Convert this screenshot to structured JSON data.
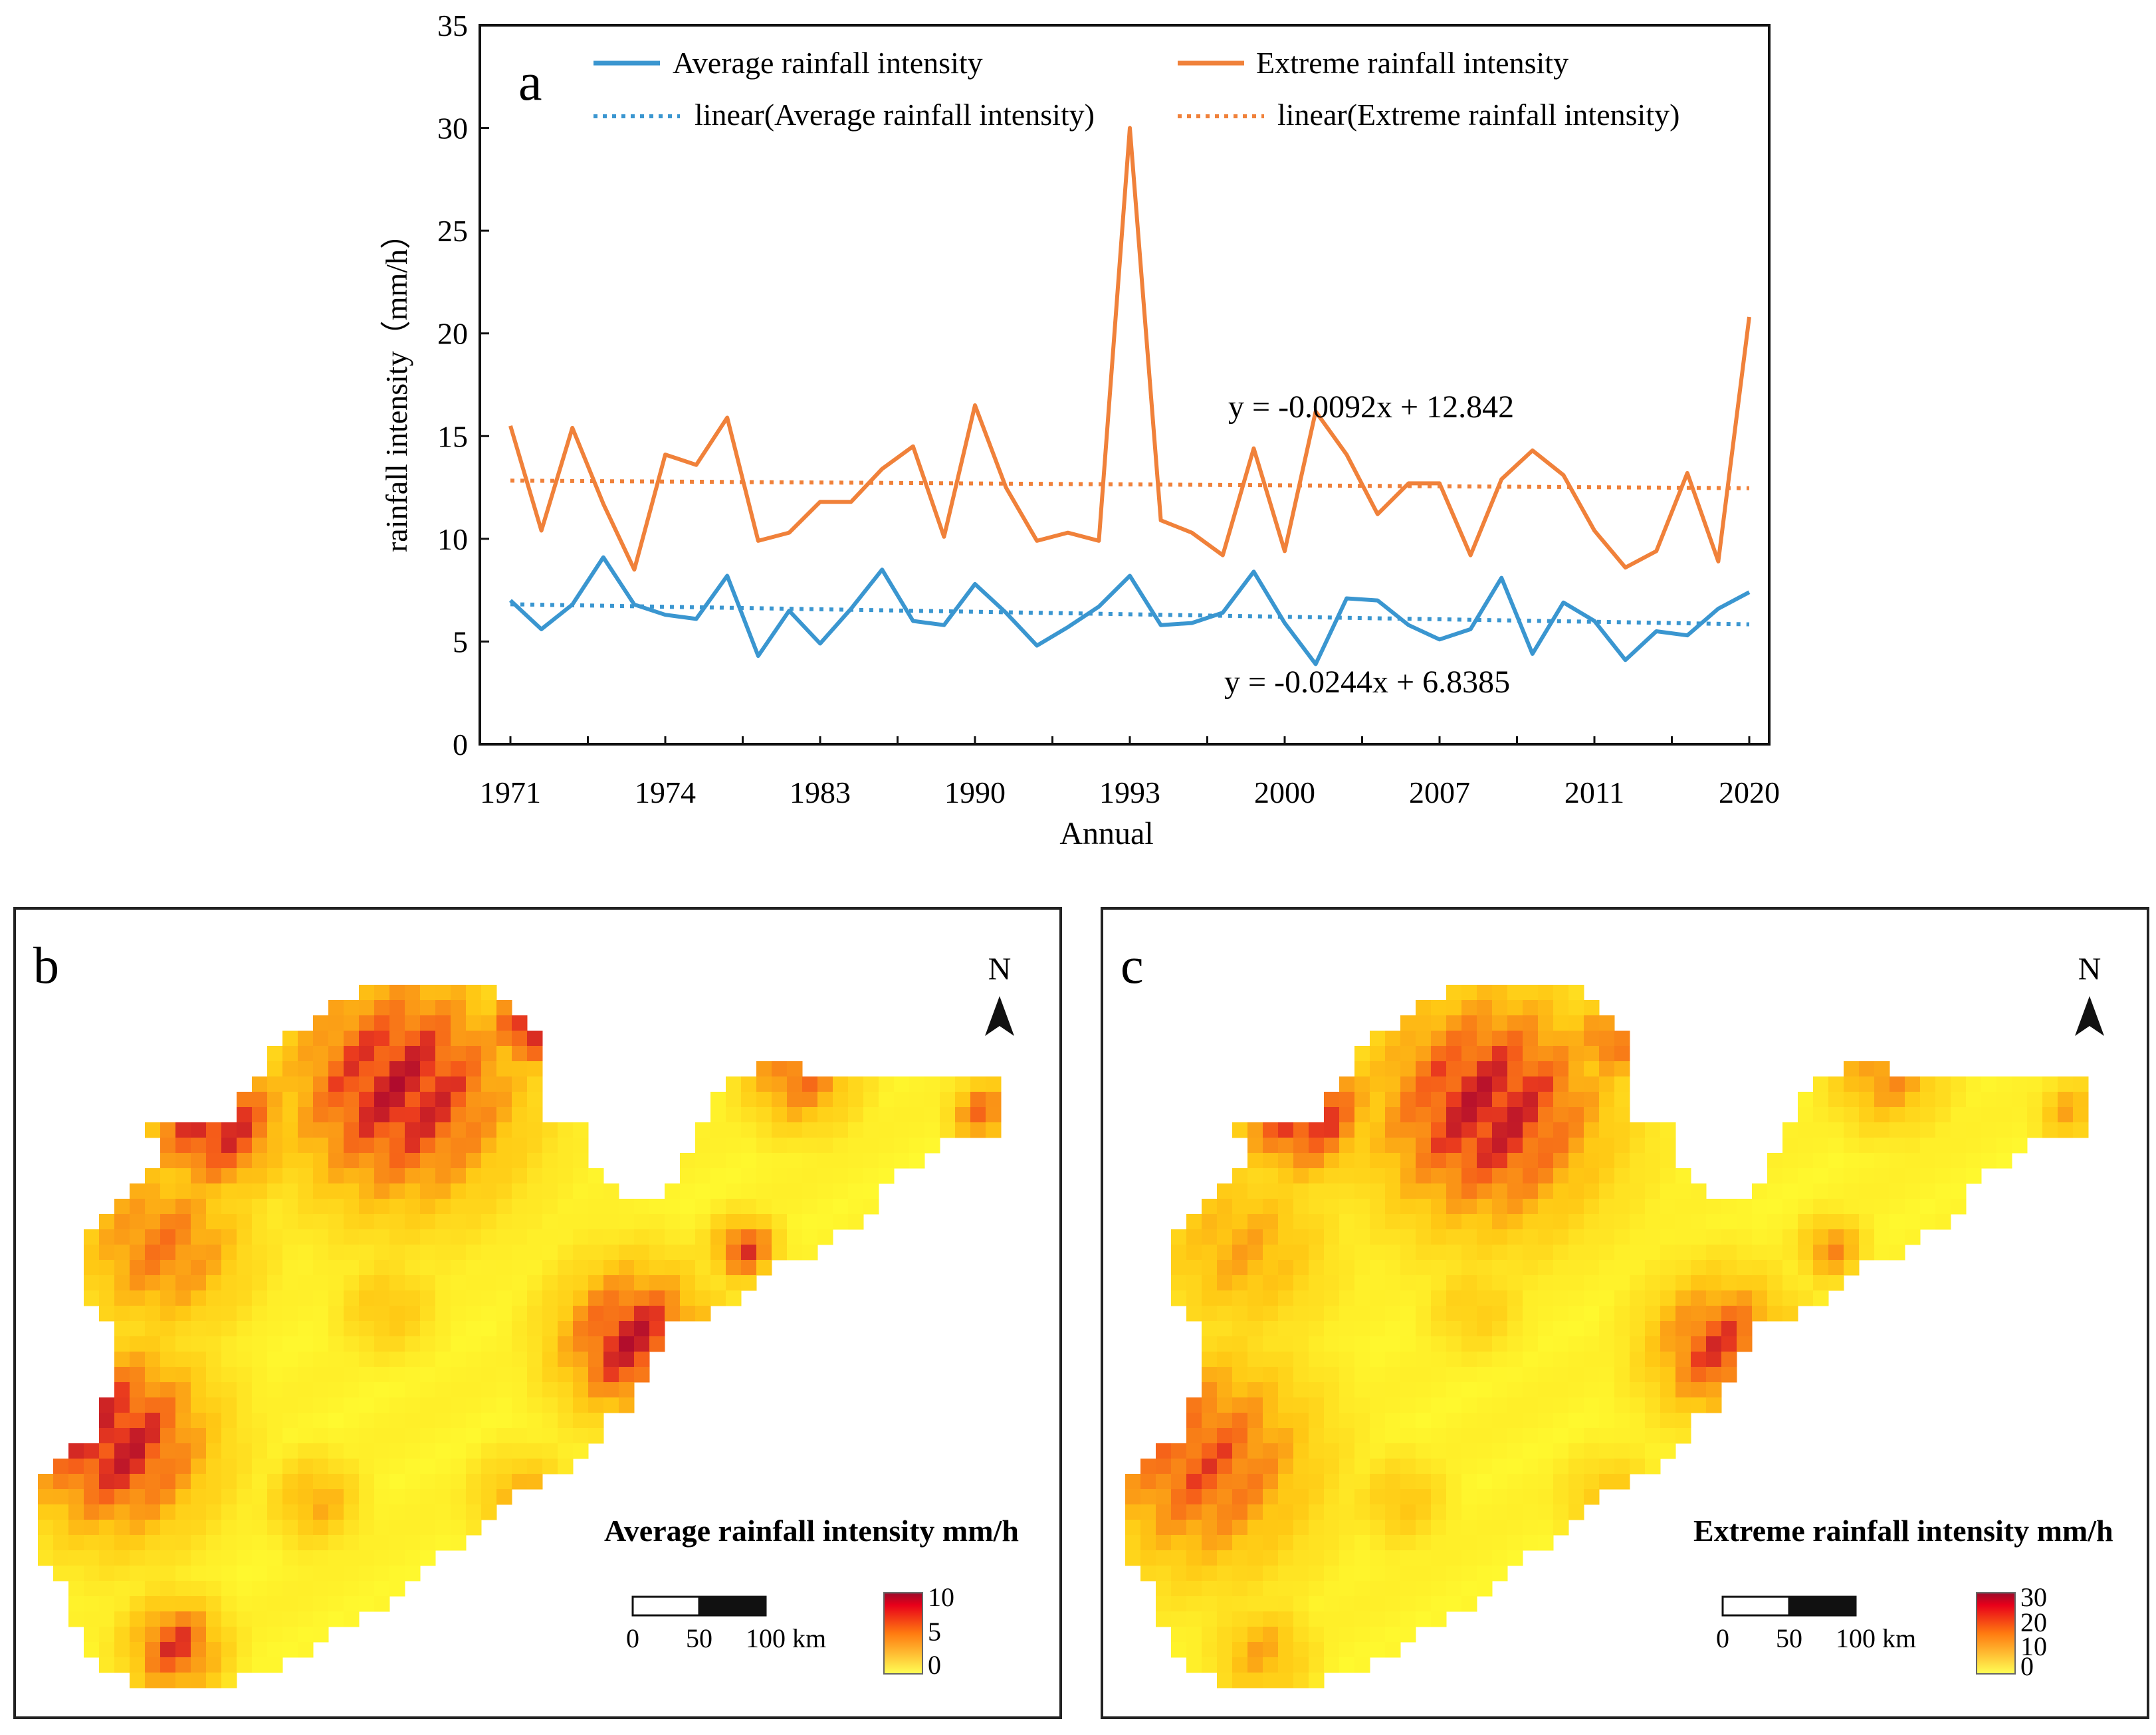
{
  "chart_data": [
    {
      "type": "line",
      "panel_letter": "a",
      "xlabel": "Annual",
      "ylabel": "rainfall intensity（mm/h）",
      "ylim": [
        0,
        35
      ],
      "yticks": [
        0,
        5,
        10,
        15,
        20,
        25,
        30,
        35
      ],
      "xlim": [
        1,
        50
      ],
      "xtick_labels": [
        "1971",
        "1974",
        "1983",
        "1990",
        "1993",
        "2000",
        "2007",
        "2011",
        "2020"
      ],
      "legend": "top",
      "grid": false,
      "series": [
        {
          "name": "Average rainfall intensity",
          "color": "#3a96d0",
          "style": "solid",
          "values": [
            7.0,
            5.6,
            6.8,
            9.1,
            6.8,
            6.3,
            6.1,
            8.2,
            4.3,
            6.5,
            4.9,
            6.6,
            8.5,
            6.0,
            5.8,
            7.8,
            6.4,
            4.8,
            5.7,
            6.7,
            8.2,
            5.8,
            5.9,
            6.4,
            8.4,
            5.9,
            3.9,
            7.1,
            7.0,
            5.8,
            5.1,
            5.6,
            8.1,
            4.4,
            6.9,
            6.0,
            4.1,
            5.5,
            5.3,
            6.6,
            7.4
          ]
        },
        {
          "name": "Extreme rainfall intensity",
          "color": "#f0813a",
          "style": "solid",
          "values": [
            15.5,
            10.4,
            15.4,
            11.7,
            8.5,
            14.1,
            13.6,
            15.9,
            9.9,
            10.3,
            11.8,
            11.8,
            13.4,
            14.5,
            10.1,
            16.5,
            12.5,
            9.9,
            10.3,
            9.9,
            30.0,
            10.9,
            10.3,
            9.2,
            14.4,
            9.4,
            16.2,
            14.1,
            11.2,
            12.7,
            12.7,
            9.2,
            12.9,
            14.3,
            13.1,
            10.4,
            8.6,
            9.4,
            13.2,
            8.9,
            20.8
          ]
        },
        {
          "name": "linear(Average rainfall intensity)",
          "color": "#3a96d0",
          "style": "dotted",
          "trend": {
            "slope": -0.0244,
            "intercept": 6.8385
          }
        },
        {
          "name": "linear(Extreme rainfall intensity)",
          "color": "#f0813a",
          "style": "dotted",
          "trend": {
            "slope": -0.0092,
            "intercept": 12.842
          }
        }
      ],
      "annotations": [
        "y = -0.0092x + 12.842",
        "y = -0.0244x + 6.8385"
      ]
    },
    {
      "type": "heatmap",
      "panel_letter": "b",
      "legend_title": "Average rainfall intensity mm/h",
      "colorbar_ticks": [
        "10",
        "5",
        "0"
      ],
      "north_label": "N",
      "scale_labels": [
        "0",
        "50",
        "100 km"
      ]
    },
    {
      "type": "heatmap",
      "panel_letter": "c",
      "legend_title": "Extreme rainfall intensity mm/h",
      "colorbar_ticks": [
        "30",
        "20",
        "10",
        "0"
      ],
      "north_label": "N",
      "scale_labels": [
        "0",
        "50",
        "100 km"
      ]
    }
  ],
  "colors": {
    "map_low": "#ffff33",
    "map_mid": "#ff7f20",
    "map_high": "#e6001e",
    "map_max": "#9b0a2a"
  }
}
